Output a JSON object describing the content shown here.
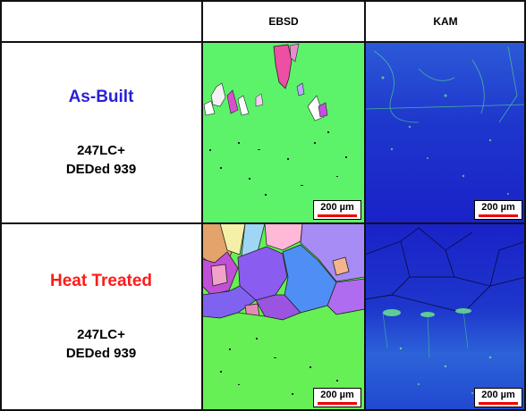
{
  "headers": {
    "col_ebsd": "EBSD",
    "col_kam": "KAM"
  },
  "rows": [
    {
      "condition": "As-Built",
      "condition_color": "#2a1fd6",
      "material_line1": "247LC+",
      "material_line2": "DEDed 939"
    },
    {
      "condition": "Heat Treated",
      "condition_color": "#ff1a1a",
      "material_line1": "247LC+",
      "material_line2": "DEDed 939"
    }
  ],
  "scale_bar": {
    "label": "200 µm",
    "color": "#e00000"
  },
  "colors": {
    "ebsd_background": "#5cf36a",
    "kam_background": "#1f2fd0",
    "grid_lines": "#111111"
  }
}
